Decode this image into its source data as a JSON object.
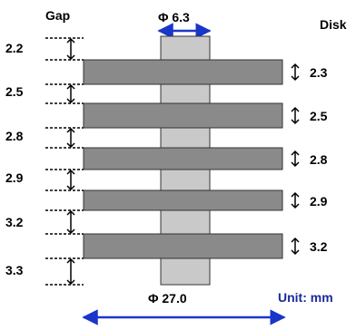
{
  "header": {
    "gap_label": "Gap",
    "disk_label": "Disk"
  },
  "shaft_diameter_label": "Φ 6.3",
  "disk_diameter_label": "Φ 27.0",
  "unit_label": "Unit: mm",
  "gaps": [
    "2.2",
    "2.5",
    "2.8",
    "2.9",
    "3.2",
    "3.3"
  ],
  "disks": [
    "2.3",
    "2.5",
    "2.8",
    "2.9",
    "3.2"
  ],
  "colors": {
    "disk_fill": "#8a8a8a",
    "shaft_fill": "#c9c9c9",
    "arrow_blue": "#1a36c8",
    "unit_text": "#1a2a9a"
  }
}
